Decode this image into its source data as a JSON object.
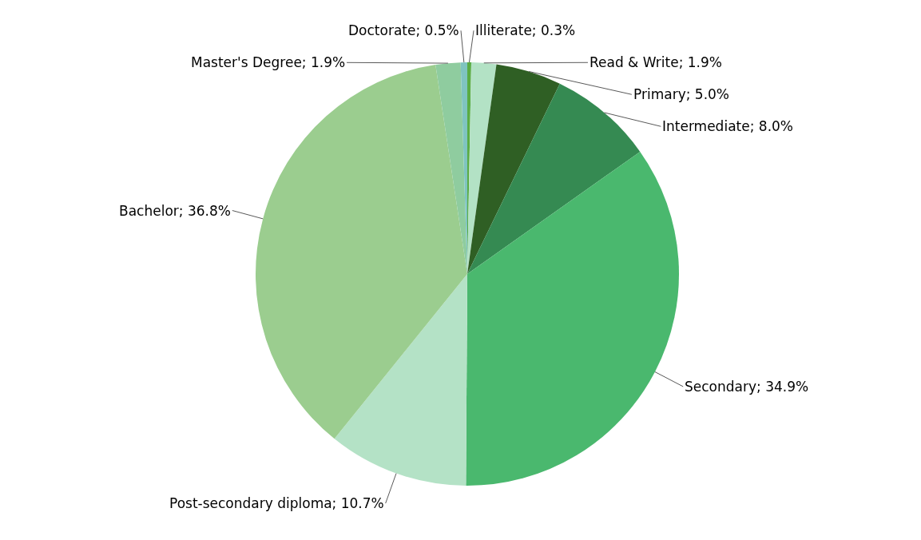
{
  "chart_data": {
    "type": "pie",
    "categories": [
      "Illiterate",
      "Read & Write",
      "Primary",
      "Intermediate",
      "Secondary",
      "Post-secondary diploma",
      "Bachelor",
      "Master's Degree",
      "Doctorate"
    ],
    "values": [
      0.3,
      1.9,
      5.0,
      8.0,
      34.9,
      10.7,
      36.8,
      1.9,
      0.5
    ],
    "value_labels": [
      "; 0.3%",
      "; 1.9%",
      "; 5.0%",
      "; 8.0%",
      "; 34.9%",
      "; 10.7%",
      "; 36.8%",
      "; 1.9%",
      "; 0.5%"
    ],
    "colors": [
      "#5aac44",
      "#b3e2c5",
      "#2f5f24",
      "#358a52",
      "#4ab86e",
      "#b4e2c6",
      "#9bcd8f",
      "#8fcc9f",
      "#7fc4c0"
    ],
    "legend": false
  }
}
